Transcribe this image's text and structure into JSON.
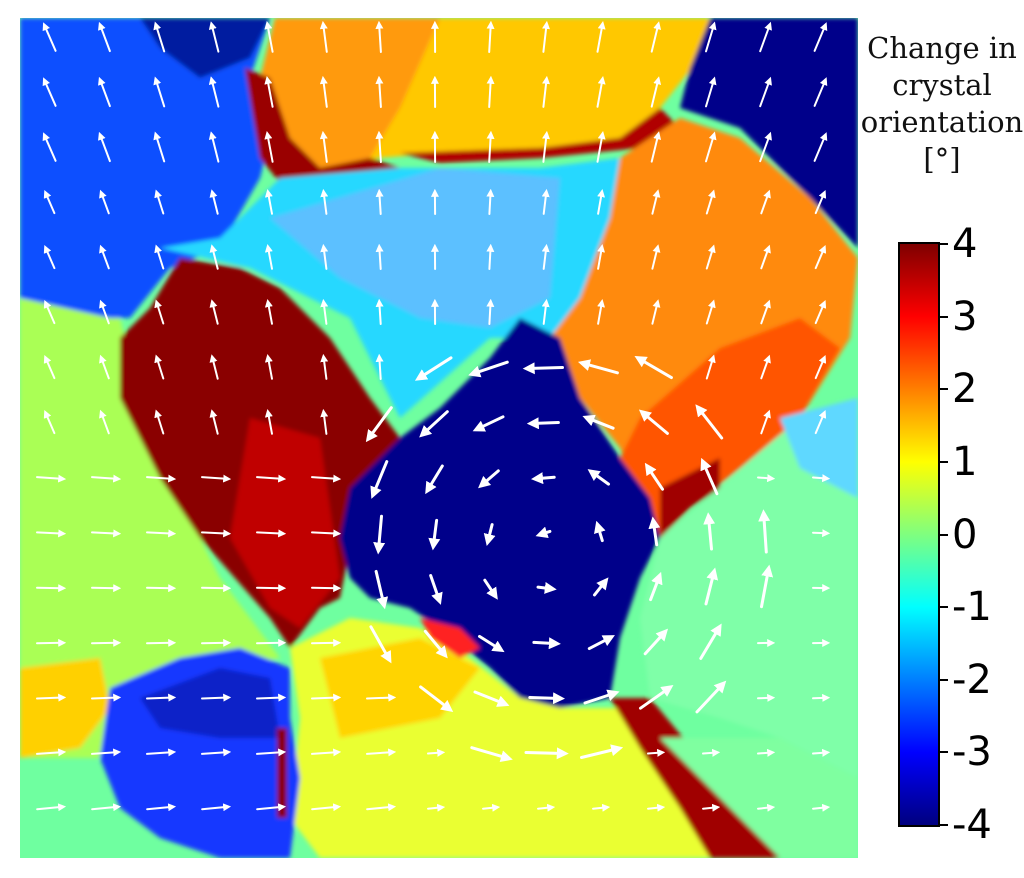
{
  "colorbar": {
    "title_lines": [
      "Change in",
      "crystal",
      "orientation",
      "[°]"
    ],
    "min": -4,
    "max": 4,
    "ticks": [
      "4",
      "3",
      "2",
      "1",
      "0",
      "-1",
      "-2",
      "-3",
      "-4"
    ],
    "colormap": "jet"
  },
  "field": {
    "description_colors": {
      "dark_red": "#7f0000",
      "red": "#ff0000",
      "orange": "#ff7f00",
      "yellow": "#ffff00",
      "green": "#7fff7f",
      "cyan": "#00ffff",
      "light_blue": "#007fff",
      "blue": "#0000ff",
      "dark_blue": "#00007f"
    },
    "arrow_color": "#ffffff"
  }
}
